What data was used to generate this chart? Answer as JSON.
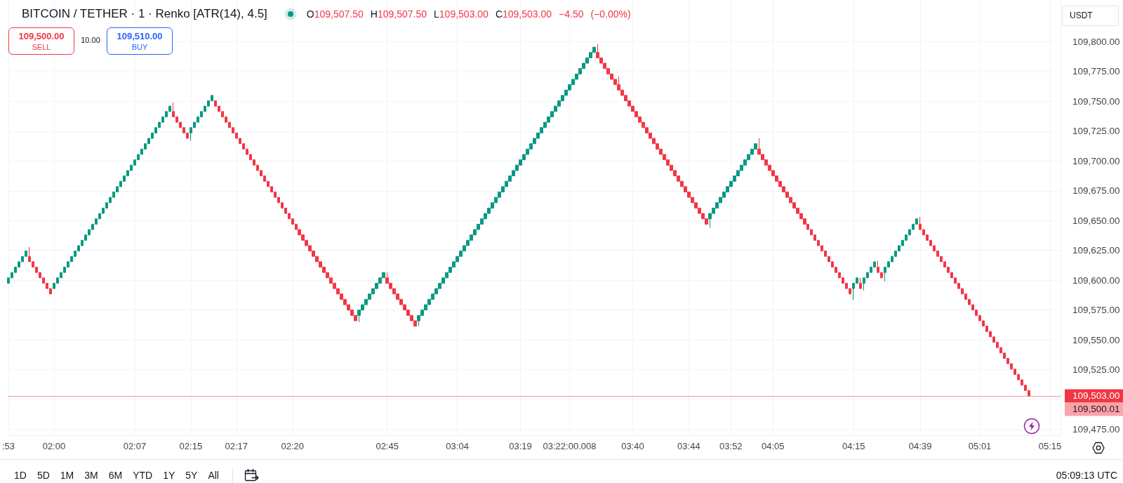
{
  "chart_data": {
    "type": "candlestick",
    "title": "BITCOIN / TETHER · 1 · Renko [ATR(14), 4.5]",
    "subtitle": "O109,507.50 H109,507.50 L109,503.00 C109,503.00 −4.50 (−0.00%)",
    "categories": [
      ":53",
      null,
      null,
      null,
      null,
      null,
      null,
      null,
      null,
      null,
      null,
      null,
      null,
      "02:00",
      null,
      null,
      null,
      null,
      null,
      null,
      null,
      null,
      null,
      null,
      null,
      null,
      null,
      null,
      null,
      null,
      null,
      null,
      null,
      null,
      null,
      null,
      "02:07",
      null,
      null,
      null,
      null,
      null,
      null,
      null,
      null,
      null,
      null,
      null,
      null,
      null,
      null,
      null,
      "02:15",
      null,
      null,
      null,
      null,
      null,
      null,
      null,
      null,
      null,
      null,
      null,
      null,
      "02:17",
      null,
      null,
      null,
      null,
      null,
      null,
      null,
      null,
      null,
      null,
      null,
      null,
      null,
      null,
      null,
      "02:20",
      null,
      null,
      null,
      null,
      null,
      null,
      null,
      null,
      null,
      null,
      null,
      null,
      null,
      null,
      null,
      null,
      null,
      null,
      null,
      null,
      null,
      null,
      null,
      null,
      null,
      null,
      "02:45",
      null,
      null,
      null,
      null,
      null,
      null,
      null,
      null,
      null,
      null,
      null,
      null,
      null,
      null,
      null,
      null,
      null,
      null,
      null,
      "03:04",
      null,
      null,
      null,
      null,
      null,
      null,
      null,
      null,
      null,
      null,
      null,
      null,
      null,
      null,
      null,
      null,
      null,
      "03:19",
      null,
      null,
      null,
      null,
      null,
      null,
      null,
      null,
      null,
      null,
      null,
      null,
      null,
      "03:22:00.008",
      null,
      null,
      null,
      null,
      null,
      null,
      null,
      null,
      null,
      null,
      null,
      null,
      null,
      null,
      null,
      null,
      null,
      "03:40",
      null,
      null,
      null,
      null,
      null,
      null,
      null,
      null,
      null,
      null,
      null,
      null,
      null,
      null,
      null,
      "03:44",
      null,
      null,
      null,
      null,
      null,
      null,
      null,
      null,
      null,
      null,
      null,
      "03:52",
      null,
      null,
      null,
      null,
      null,
      null,
      null,
      null,
      null,
      null,
      null,
      "04:05",
      null,
      null,
      null,
      null,
      null,
      null,
      null,
      null,
      null,
      null,
      null,
      null,
      null,
      null,
      null,
      null,
      null,
      null,
      null,
      null,
      null,
      null,
      "04:15",
      null,
      null,
      null,
      null,
      null,
      null,
      null,
      null,
      null,
      null,
      null,
      null,
      null,
      null,
      null,
      null,
      null,
      null,
      "04:39",
      null,
      null,
      null,
      null,
      null,
      null,
      null,
      null,
      null,
      null,
      null,
      null,
      null,
      null,
      null,
      null,
      "05:01",
      null,
      null,
      null,
      null,
      null,
      null,
      null,
      null,
      null,
      null,
      null,
      null,
      null,
      null,
      null,
      null,
      null,
      null,
      null,
      "05:15",
      null,
      null,
      null
    ],
    "ohlc": [
      [
        109597.5,
        109602,
        109597.5,
        109602
      ],
      [
        109602,
        109606.5,
        109602,
        109606.5
      ],
      [
        109606.5,
        109611,
        109606.5,
        109611
      ],
      [
        109611,
        109615.5,
        109611,
        109615.5
      ],
      [
        109615.5,
        109620,
        109615.5,
        109620
      ],
      [
        109620,
        109624.5,
        109620,
        109624.5
      ],
      [
        109620,
        109628,
        109615.5,
        109615.5
      ],
      [
        109615.5,
        109615.5,
        109611,
        109611
      ],
      [
        109611,
        109611,
        109606.5,
        109606.5
      ],
      [
        109606.5,
        109606.5,
        109602,
        109602
      ],
      [
        109602,
        109602,
        109597.5,
        109597.5
      ],
      [
        109597.5,
        109597.5,
        109593,
        109593
      ],
      [
        109593,
        109593,
        109588.5,
        109588.5
      ],
      [
        109593,
        109597.5,
        109593,
        109597.5
      ],
      [
        109597.5,
        109602,
        109597.5,
        109602
      ],
      [
        109602,
        109606.5,
        109602,
        109606.5
      ],
      [
        109606.5,
        109611,
        109606.5,
        109611
      ],
      [
        109611,
        109615.5,
        109611,
        109615.5
      ],
      [
        109615.5,
        109620,
        109615.5,
        109620
      ],
      [
        109620,
        109624.5,
        109620,
        109624.5
      ],
      [
        109624.5,
        109629,
        109624.5,
        109629
      ],
      [
        109629,
        109633.5,
        109629,
        109633.5
      ],
      [
        109633.5,
        109638,
        109633.5,
        109638
      ],
      [
        109638,
        109642.5,
        109638,
        109642.5
      ],
      [
        109642.5,
        109647,
        109642.5,
        109647
      ],
      [
        109647,
        109651.5,
        109647,
        109651.5
      ],
      [
        109651.5,
        109656,
        109651.5,
        109656
      ],
      [
        109656,
        109660.5,
        109656,
        109660.5
      ],
      [
        109660.5,
        109665,
        109660.5,
        109665
      ],
      [
        109665,
        109669.5,
        109665,
        109669.5
      ],
      [
        109669.5,
        109674,
        109669.5,
        109674
      ],
      [
        109674,
        109678.5,
        109674,
        109678.5
      ],
      [
        109678.5,
        109683,
        109678.5,
        109683
      ],
      [
        109683,
        109687.5,
        109683,
        109687.5
      ],
      [
        109687.5,
        109692,
        109687.5,
        109692
      ],
      [
        109692,
        109696.5,
        109692,
        109696.5
      ],
      [
        109696.5,
        109701,
        109696.5,
        109701
      ],
      [
        109701,
        109705.5,
        109701,
        109705.5
      ],
      [
        109705.5,
        109710,
        109705.5,
        109710
      ],
      [
        109710,
        109714.5,
        109710,
        109714.5
      ],
      [
        109714.5,
        109719,
        109714.5,
        109719
      ],
      [
        109719,
        109723.5,
        109719,
        109723.5
      ],
      [
        109723.5,
        109728,
        109723.5,
        109728
      ],
      [
        109728,
        109732.5,
        109728,
        109732.5
      ],
      [
        109732.5,
        109737,
        109732.5,
        109737
      ],
      [
        109737,
        109741.5,
        109737,
        109741.5
      ],
      [
        109741.5,
        109746,
        109741.5,
        109746
      ],
      [
        109741.5,
        109749,
        109737,
        109737
      ],
      [
        109737,
        109737,
        109732.5,
        109732.5
      ],
      [
        109732.5,
        109732.5,
        109728,
        109728
      ],
      [
        109728,
        109728,
        109723.5,
        109723.5
      ],
      [
        109723.5,
        109723.5,
        109719,
        109719
      ],
      [
        109723.5,
        109728,
        109717,
        109728
      ],
      [
        109728,
        109732.5,
        109728,
        109732.5
      ],
      [
        109732.5,
        109737,
        109732.5,
        109737
      ],
      [
        109737,
        109741.5,
        109737,
        109741.5
      ],
      [
        109741.5,
        109746,
        109741.5,
        109746
      ],
      [
        109746,
        109750.5,
        109746,
        109750.5
      ],
      [
        109750.5,
        109755,
        109750.5,
        109755
      ],
      [
        109750.5,
        109750.5,
        109746,
        109746
      ],
      [
        109746,
        109746,
        109741.5,
        109741.5
      ],
      [
        109741.5,
        109741.5,
        109737,
        109737
      ],
      [
        109737,
        109737,
        109732.5,
        109732.5
      ],
      [
        109732.5,
        109732.5,
        109728,
        109728
      ],
      [
        109728,
        109728,
        109723.5,
        109723.5
      ],
      [
        109723.5,
        109723.5,
        109719,
        109719
      ],
      [
        109719,
        109719,
        109714.5,
        109714.5
      ],
      [
        109714.5,
        109714.5,
        109710,
        109710
      ],
      [
        109710,
        109710,
        109705.5,
        109705.5
      ],
      [
        109705.5,
        109705.5,
        109701,
        109701
      ],
      [
        109701,
        109701,
        109696.5,
        109696.5
      ],
      [
        109696.5,
        109696.5,
        109692,
        109692
      ],
      [
        109692,
        109692,
        109687.5,
        109687.5
      ],
      [
        109687.5,
        109687.5,
        109683,
        109683
      ],
      [
        109683,
        109683,
        109678.5,
        109678.5
      ],
      [
        109678.5,
        109678.5,
        109674,
        109674
      ],
      [
        109674,
        109674,
        109669.5,
        109669.5
      ],
      [
        109669.5,
        109669.5,
        109665,
        109665
      ],
      [
        109665,
        109665,
        109660.5,
        109660.5
      ],
      [
        109660.5,
        109660.5,
        109656,
        109656
      ],
      [
        109656,
        109656,
        109651.5,
        109651.5
      ],
      [
        109651.5,
        109651.5,
        109647,
        109647
      ],
      [
        109647,
        109647,
        109642.5,
        109642.5
      ],
      [
        109642.5,
        109642.5,
        109638,
        109638
      ],
      [
        109638,
        109638,
        109633.5,
        109633.5
      ],
      [
        109633.5,
        109633.5,
        109629,
        109629
      ],
      [
        109629,
        109629,
        109624.5,
        109624.5
      ],
      [
        109624.5,
        109624.5,
        109620,
        109620
      ],
      [
        109620,
        109620,
        109615.5,
        109615.5
      ],
      [
        109615.5,
        109615.5,
        109611,
        109611
      ],
      [
        109611,
        109611,
        109606.5,
        109606.5
      ],
      [
        109606.5,
        109606.5,
        109602,
        109602
      ],
      [
        109602,
        109602,
        109597.5,
        109597.5
      ],
      [
        109597.5,
        109597.5,
        109593,
        109593
      ],
      [
        109593,
        109593,
        109588.5,
        109588.5
      ],
      [
        109588.5,
        109588.5,
        109584,
        109584
      ],
      [
        109584,
        109584,
        109579.5,
        109579.5
      ],
      [
        109579.5,
        109579.5,
        109575,
        109575
      ],
      [
        109575,
        109575,
        109570.5,
        109570.5
      ],
      [
        109570.5,
        109570.5,
        109566,
        109566
      ],
      [
        109570.5,
        109575,
        109565,
        109575
      ],
      [
        109575,
        109579.5,
        109575,
        109579.5
      ],
      [
        109579.5,
        109584,
        109579.5,
        109584
      ],
      [
        109584,
        109588.5,
        109584,
        109588.5
      ],
      [
        109588.5,
        109593,
        109588.5,
        109593
      ],
      [
        109593,
        109597.5,
        109593,
        109597.5
      ],
      [
        109597.5,
        109602,
        109597.5,
        109602
      ],
      [
        109602,
        109606.5,
        109602,
        109606.5
      ],
      [
        109602,
        109606.5,
        109597.5,
        109597.5
      ],
      [
        109597.5,
        109597.5,
        109593,
        109593
      ],
      [
        109593,
        109593,
        109588.5,
        109588.5
      ],
      [
        109588.5,
        109588.5,
        109584,
        109584
      ],
      [
        109584,
        109584,
        109579.5,
        109579.5
      ],
      [
        109579.5,
        109579.5,
        109575,
        109575
      ],
      [
        109575,
        109575,
        109570.5,
        109570.5
      ],
      [
        109570.5,
        109570.5,
        109566,
        109566
      ],
      [
        109566,
        109566,
        109561.5,
        109561.5
      ],
      [
        109566,
        109570.5,
        109561.5,
        109570.5
      ],
      [
        109570.5,
        109575,
        109570.5,
        109575
      ],
      [
        109575,
        109579.5,
        109575,
        109579.5
      ],
      [
        109579.5,
        109584,
        109579.5,
        109584
      ],
      [
        109584,
        109588.5,
        109584,
        109588.5
      ],
      [
        109588.5,
        109593,
        109588.5,
        109593
      ],
      [
        109593,
        109597.5,
        109593,
        109597.5
      ],
      [
        109597.5,
        109602,
        109597.5,
        109602
      ],
      [
        109602,
        109606.5,
        109602,
        109606.5
      ],
      [
        109606.5,
        109611,
        109606.5,
        109611
      ],
      [
        109611,
        109615.5,
        109611,
        109615.5
      ],
      [
        109615.5,
        109620,
        109615.5,
        109620
      ],
      [
        109620,
        109624.5,
        109620,
        109624.5
      ],
      [
        109624.5,
        109629,
        109624.5,
        109629
      ],
      [
        109629,
        109633.5,
        109629,
        109633.5
      ],
      [
        109633.5,
        109638,
        109633.5,
        109638
      ],
      [
        109638,
        109642.5,
        109638,
        109642.5
      ],
      [
        109642.5,
        109647,
        109642.5,
        109647
      ],
      [
        109647,
        109651.5,
        109647,
        109651.5
      ],
      [
        109651.5,
        109656,
        109651.5,
        109656
      ],
      [
        109656,
        109660.5,
        109656,
        109660.5
      ],
      [
        109660.5,
        109665,
        109660.5,
        109665
      ],
      [
        109665,
        109669.5,
        109665,
        109669.5
      ],
      [
        109669.5,
        109674,
        109669.5,
        109674
      ],
      [
        109674,
        109678.5,
        109674,
        109678.5
      ],
      [
        109678.5,
        109683,
        109678.5,
        109683
      ],
      [
        109683,
        109687.5,
        109683,
        109687.5
      ],
      [
        109687.5,
        109692,
        109687.5,
        109692
      ],
      [
        109692,
        109696.5,
        109692,
        109696.5
      ],
      [
        109696.5,
        109701,
        109696.5,
        109701
      ],
      [
        109701,
        109705.5,
        109701,
        109705.5
      ],
      [
        109705.5,
        109710,
        109705.5,
        109710
      ],
      [
        109710,
        109714.5,
        109710,
        109714.5
      ],
      [
        109714.5,
        109719,
        109714.5,
        109719
      ],
      [
        109719,
        109723.5,
        109719,
        109723.5
      ],
      [
        109723.5,
        109728,
        109723.5,
        109728
      ],
      [
        109728,
        109732.5,
        109728,
        109732.5
      ],
      [
        109732.5,
        109737,
        109732.5,
        109737
      ],
      [
        109737,
        109741.5,
        109737,
        109741.5
      ],
      [
        109741.5,
        109746,
        109741.5,
        109746
      ],
      [
        109746,
        109750.5,
        109746,
        109750.5
      ],
      [
        109750.5,
        109755,
        109750.5,
        109755
      ],
      [
        109755,
        109759.5,
        109755,
        109759.5
      ],
      [
        109759.5,
        109764,
        109759.5,
        109764
      ],
      [
        109764,
        109768.5,
        109764,
        109768.5
      ],
      [
        109768.5,
        109773,
        109768.5,
        109773
      ],
      [
        109773,
        109777.5,
        109773,
        109777.5
      ],
      [
        109777.5,
        109782,
        109777.5,
        109782
      ],
      [
        109782,
        109786.5,
        109782,
        109786.5
      ],
      [
        109786.5,
        109791,
        109786.5,
        109791
      ],
      [
        109791,
        109795.5,
        109791,
        109795.5
      ],
      [
        109791,
        109798,
        109786.5,
        109786.5
      ],
      [
        109786.5,
        109786.5,
        109782,
        109782
      ],
      [
        109782,
        109782,
        109777.5,
        109777.5
      ],
      [
        109777.5,
        109777.5,
        109773,
        109773
      ],
      [
        109773,
        109773,
        109768.5,
        109768.5
      ],
      [
        109768.5,
        109768.5,
        109764,
        109764
      ],
      [
        109764,
        109771,
        109759.5,
        109759.5
      ],
      [
        109759.5,
        109759.5,
        109755,
        109755
      ],
      [
        109755,
        109755,
        109750.5,
        109750.5
      ],
      [
        109750.5,
        109750.5,
        109746,
        109746
      ],
      [
        109746,
        109746,
        109741.5,
        109741.5
      ],
      [
        109741.5,
        109741.5,
        109737,
        109737
      ],
      [
        109737,
        109737,
        109732.5,
        109732.5
      ],
      [
        109732.5,
        109732.5,
        109728,
        109728
      ],
      [
        109728,
        109728,
        109723.5,
        109723.5
      ],
      [
        109723.5,
        109723.5,
        109719,
        109719
      ],
      [
        109719,
        109719,
        109714.5,
        109714.5
      ],
      [
        109714.5,
        109714.5,
        109710,
        109710
      ],
      [
        109710,
        109710,
        109705.5,
        109705.5
      ],
      [
        109705.5,
        109705.5,
        109701,
        109701
      ],
      [
        109701,
        109701,
        109696.5,
        109696.5
      ],
      [
        109696.5,
        109696.5,
        109692,
        109692
      ],
      [
        109692,
        109692,
        109687.5,
        109687.5
      ],
      [
        109687.5,
        109687.5,
        109683,
        109683
      ],
      [
        109683,
        109683,
        109678.5,
        109678.5
      ],
      [
        109678.5,
        109678.5,
        109674,
        109674
      ],
      [
        109674,
        109674,
        109669.5,
        109669.5
      ],
      [
        109669.5,
        109669.5,
        109665,
        109665
      ],
      [
        109665,
        109665,
        109660.5,
        109660.5
      ],
      [
        109660.5,
        109660.5,
        109656,
        109656
      ],
      [
        109656,
        109656,
        109651.5,
        109651.5
      ],
      [
        109651.5,
        109651.5,
        109647,
        109647
      ],
      [
        109651.5,
        109656,
        109644,
        109656
      ],
      [
        109656,
        109660.5,
        109656,
        109660.5
      ],
      [
        109660.5,
        109665,
        109660.5,
        109665
      ],
      [
        109665,
        109669.5,
        109665,
        109669.5
      ],
      [
        109669.5,
        109674,
        109669.5,
        109674
      ],
      [
        109674,
        109678.5,
        109674,
        109678.5
      ],
      [
        109678.5,
        109683,
        109678.5,
        109683
      ],
      [
        109683,
        109687.5,
        109683,
        109687.5
      ],
      [
        109687.5,
        109692,
        109687.5,
        109692
      ],
      [
        109692,
        109696.5,
        109692,
        109696.5
      ],
      [
        109696.5,
        109701,
        109696.5,
        109701
      ],
      [
        109701,
        109705.5,
        109701,
        109705.5
      ],
      [
        109705.5,
        109710,
        109705.5,
        109710
      ],
      [
        109710,
        109714.5,
        109710,
        109714.5
      ],
      [
        109710,
        109719,
        109705.5,
        109705.5
      ],
      [
        109705.5,
        109705.5,
        109701,
        109701
      ],
      [
        109701,
        109701,
        109696.5,
        109696.5
      ],
      [
        109696.5,
        109696.5,
        109692,
        109692
      ],
      [
        109692,
        109692,
        109687.5,
        109687.5
      ],
      [
        109687.5,
        109687.5,
        109683,
        109683
      ],
      [
        109683,
        109683,
        109678.5,
        109678.5
      ],
      [
        109678.5,
        109678.5,
        109674,
        109674
      ],
      [
        109674,
        109674,
        109669.5,
        109669.5
      ],
      [
        109669.5,
        109669.5,
        109665,
        109665
      ],
      [
        109665,
        109665,
        109660.5,
        109660.5
      ],
      [
        109660.5,
        109660.5,
        109656,
        109656
      ],
      [
        109656,
        109656,
        109651.5,
        109651.5
      ],
      [
        109651.5,
        109651.5,
        109647,
        109647
      ],
      [
        109647,
        109647,
        109642.5,
        109642.5
      ],
      [
        109642.5,
        109642.5,
        109638,
        109638
      ],
      [
        109638,
        109638,
        109633.5,
        109633.5
      ],
      [
        109633.5,
        109633.5,
        109629,
        109629
      ],
      [
        109629,
        109629,
        109624.5,
        109624.5
      ],
      [
        109624.5,
        109624.5,
        109620,
        109620
      ],
      [
        109620,
        109620,
        109615.5,
        109615.5
      ],
      [
        109615.5,
        109615.5,
        109611,
        109611
      ],
      [
        109611,
        109611,
        109606.5,
        109606.5
      ],
      [
        109606.5,
        109606.5,
        109602,
        109602
      ],
      [
        109602,
        109602,
        109597.5,
        109597.5
      ],
      [
        109597.5,
        109597.5,
        109593,
        109593
      ],
      [
        109593,
        109593,
        109588.5,
        109588.5
      ],
      [
        109593,
        109597.5,
        109583.5,
        109597.5
      ],
      [
        109597.5,
        109602,
        109597.5,
        109602
      ],
      [
        109597.5,
        109602,
        109593,
        109593
      ],
      [
        109597.5,
        109602,
        109591.5,
        109602
      ],
      [
        109602,
        109606.5,
        109602,
        109606.5
      ],
      [
        109606.5,
        109611,
        109606.5,
        109611
      ],
      [
        109611,
        109615.5,
        109611,
        109615.5
      ],
      [
        109611,
        109616.5,
        109606.5,
        109606.5
      ],
      [
        109606.5,
        109606.5,
        109602,
        109602
      ],
      [
        109606.5,
        109611,
        109599,
        109611
      ],
      [
        109611,
        109615.5,
        109611,
        109615.5
      ],
      [
        109615.5,
        109620,
        109615.5,
        109620
      ],
      [
        109620,
        109624.5,
        109620,
        109624.5
      ],
      [
        109624.5,
        109629,
        109624.5,
        109629
      ],
      [
        109629,
        109633.5,
        109629,
        109633.5
      ],
      [
        109633.5,
        109638,
        109633.5,
        109638
      ],
      [
        109638,
        109642.5,
        109638,
        109642.5
      ],
      [
        109642.5,
        109647,
        109642.5,
        109647
      ],
      [
        109647,
        109651.5,
        109647,
        109651.5
      ],
      [
        109647,
        109653,
        109642.5,
        109642.5
      ],
      [
        109642.5,
        109642.5,
        109638,
        109638
      ],
      [
        109638,
        109638,
        109633.5,
        109633.5
      ],
      [
        109633.5,
        109633.5,
        109629,
        109629
      ],
      [
        109629,
        109629,
        109624.5,
        109624.5
      ],
      [
        109624.5,
        109624.5,
        109620,
        109620
      ],
      [
        109620,
        109620,
        109615.5,
        109615.5
      ],
      [
        109615.5,
        109615.5,
        109611,
        109611
      ],
      [
        109611,
        109611,
        109606.5,
        109606.5
      ],
      [
        109606.5,
        109606.5,
        109602,
        109602
      ],
      [
        109602,
        109602,
        109597.5,
        109597.5
      ],
      [
        109597.5,
        109597.5,
        109593,
        109593
      ],
      [
        109593,
        109593,
        109588.5,
        109588.5
      ],
      [
        109588.5,
        109588.5,
        109584,
        109584
      ],
      [
        109584,
        109584,
        109579.5,
        109579.5
      ],
      [
        109579.5,
        109579.5,
        109575,
        109575
      ],
      [
        109575,
        109575,
        109570.5,
        109570.5
      ],
      [
        109570.5,
        109570.5,
        109566,
        109566
      ],
      [
        109566,
        109566,
        109561.5,
        109561.5
      ],
      [
        109561.5,
        109561.5,
        109557,
        109557
      ],
      [
        109557,
        109557,
        109552.5,
        109552.5
      ],
      [
        109552.5,
        109552.5,
        109548,
        109548
      ],
      [
        109548,
        109548,
        109543.5,
        109543.5
      ],
      [
        109543.5,
        109543.5,
        109539,
        109539
      ],
      [
        109539,
        109539,
        109534.5,
        109534.5
      ],
      [
        109534.5,
        109534.5,
        109530,
        109530
      ],
      [
        109530,
        109530,
        109525.5,
        109525.5
      ],
      [
        109525.5,
        109525.5,
        109521,
        109521
      ],
      [
        109521,
        109521,
        109516.5,
        109516.5
      ],
      [
        109516.5,
        109516.5,
        109512,
        109512
      ],
      [
        109512,
        109512,
        109507.5,
        109507.5
      ],
      [
        109507.5,
        109507.5,
        109503,
        109503
      ],
      null,
      null,
      null,
      null,
      null,
      null,
      null,
      null,
      null
    ],
    "colors": [
      "#089981",
      "#089981",
      "#089981",
      "#089981",
      "#089981",
      "#089981",
      "#f23645",
      "#f23645",
      "#f23645",
      "#f23645",
      "#f23645",
      "#f23645",
      "#f23645",
      "#089981",
      "#089981",
      "#089981",
      "#089981",
      "#089981",
      "#089981",
      "#089981",
      "#089981",
      "#089981",
      "#089981",
      "#089981",
      "#089981",
      "#089981",
      "#089981",
      "#089981",
      "#089981",
      "#089981",
      "#089981",
      "#089981",
      "#089981",
      "#089981",
      "#089981",
      "#089981",
      "#089981",
      "#089981",
      "#089981",
      "#089981",
      "#089981",
      "#089981",
      "#089981",
      "#089981",
      "#089981",
      "#089981",
      "#089981",
      "#f23645",
      "#f23645",
      "#f23645",
      "#f23645",
      "#f23645",
      "#089981",
      "#089981",
      "#089981",
      "#089981",
      "#089981",
      "#089981",
      "#089981",
      "#f23645",
      "#f23645",
      "#f23645",
      "#f23645",
      "#f23645",
      "#f23645",
      "#f23645",
      "#f23645",
      "#f23645",
      "#f23645",
      "#f23645",
      "#f23645",
      "#f23645",
      "#f23645",
      "#f23645",
      "#f23645",
      "#f23645",
      "#f23645",
      "#f23645",
      "#f23645",
      "#f23645",
      "#f23645",
      "#f23645",
      "#f23645",
      "#f23645",
      "#f23645",
      "#f23645",
      "#f23645",
      "#f23645",
      "#f23645",
      "#f23645",
      "#f23645",
      "#f23645",
      "#f23645",
      "#f23645",
      "#f23645",
      "#f23645",
      "#f23645",
      "#f23645",
      "#f23645",
      "#f23645",
      "#089981",
      "#089981",
      "#089981",
      "#089981",
      "#089981",
      "#089981",
      "#089981",
      "#089981",
      "#f23645",
      "#f23645",
      "#f23645",
      "#f23645",
      "#f23645",
      "#f23645",
      "#f23645",
      "#f23645",
      "#f23645",
      "#089981",
      "#089981",
      "#089981",
      "#089981",
      "#089981",
      "#089981",
      "#089981",
      "#089981",
      "#089981",
      "#089981",
      "#089981",
      "#089981",
      "#089981",
      "#089981",
      "#089981",
      "#089981",
      "#089981",
      "#089981",
      "#089981",
      "#089981",
      "#089981",
      "#089981",
      "#089981",
      "#089981",
      "#089981",
      "#089981",
      "#089981",
      "#089981",
      "#089981",
      "#089981",
      "#089981",
      "#089981",
      "#089981",
      "#089981",
      "#089981",
      "#089981",
      "#089981",
      "#089981",
      "#089981",
      "#089981",
      "#089981",
      "#089981",
      "#089981",
      "#089981",
      "#089981",
      "#089981",
      "#089981",
      "#089981",
      "#089981",
      "#089981",
      "#089981",
      "#f23645",
      "#f23645",
      "#f23645",
      "#f23645",
      "#f23645",
      "#f23645",
      "#f23645",
      "#f23645",
      "#f23645",
      "#f23645",
      "#f23645",
      "#f23645",
      "#f23645",
      "#f23645",
      "#f23645",
      "#f23645",
      "#f23645",
      "#f23645",
      "#f23645",
      "#f23645",
      "#f23645",
      "#f23645",
      "#f23645",
      "#f23645",
      "#f23645",
      "#f23645",
      "#f23645",
      "#f23645",
      "#f23645",
      "#f23645",
      "#f23645",
      "#f23645",
      "#089981",
      "#089981",
      "#089981",
      "#089981",
      "#089981",
      "#089981",
      "#089981",
      "#089981",
      "#089981",
      "#089981",
      "#089981",
      "#089981",
      "#089981",
      "#089981",
      "#f23645",
      "#f23645",
      "#f23645",
      "#f23645",
      "#f23645",
      "#f23645",
      "#f23645",
      "#f23645",
      "#f23645",
      "#f23645",
      "#f23645",
      "#f23645",
      "#f23645",
      "#f23645",
      "#f23645",
      "#f23645",
      "#f23645",
      "#f23645",
      "#f23645",
      "#f23645",
      "#f23645",
      "#f23645",
      "#f23645",
      "#f23645",
      "#f23645",
      "#f23645",
      "#f23645",
      "#089981",
      "#089981",
      "#f23645",
      "#089981",
      "#089981",
      "#089981",
      "#089981",
      "#f23645",
      "#f23645",
      "#089981",
      "#089981",
      "#089981",
      "#089981",
      "#089981",
      "#089981",
      "#089981",
      "#089981",
      "#089981",
      "#089981",
      "#f23645",
      "#f23645",
      "#f23645",
      "#f23645",
      "#f23645",
      "#f23645",
      "#f23645",
      "#f23645",
      "#f23645",
      "#f23645",
      "#f23645",
      "#f23645",
      "#f23645",
      "#f23645",
      "#f23645",
      "#f23645",
      "#f23645",
      "#f23645",
      "#f23645",
      "#f23645",
      "#f23645",
      "#f23645",
      "#f23645",
      "#f23645",
      "#f23645",
      "#f23645",
      "#f23645",
      "#f23645",
      "#f23645",
      "#f23645",
      "#f23645",
      "#f23645",
      null,
      null,
      null,
      null,
      null,
      null,
      null,
      null,
      null
    ],
    "ylim": [
      109470,
      109835
    ],
    "yticks": [
      {
        "value": 109475,
        "label": "109,475.00"
      },
      {
        "value": 109500,
        "label": null
      },
      {
        "value": 109525,
        "label": "109,525.00"
      },
      {
        "value": 109550,
        "label": "109,550.00"
      },
      {
        "value": 109575,
        "label": "109,575.00"
      },
      {
        "value": 109600,
        "label": "109,600.00"
      },
      {
        "value": 109625,
        "label": "109,625.00"
      },
      {
        "value": 109650,
        "label": "109,650.00"
      },
      {
        "value": 109675,
        "label": "109,675.00"
      },
      {
        "value": 109700,
        "label": "109,700.00"
      },
      {
        "value": 109725,
        "label": "109,725.00"
      },
      {
        "value": 109750,
        "label": "109,750.00"
      },
      {
        "value": 109775,
        "label": "109,775.00"
      },
      {
        "value": 109800,
        "label": "109,800.00"
      }
    ],
    "grid": true,
    "ref_lines": [
      {
        "axis": "y",
        "value": 109503,
        "label": "109,503.00",
        "color": "#f23645",
        "line_style": "dotted"
      }
    ],
    "annotations": [
      "109,500.01",
      "109,500.00",
      "SELL",
      "10.00",
      "109,510.00",
      "BUY",
      "USDT",
      "1D",
      "5D",
      "1M",
      "3M",
      "6M",
      "YTD",
      "1Y",
      "5Y",
      "All",
      "05:09:13 UTC"
    ]
  }
}
